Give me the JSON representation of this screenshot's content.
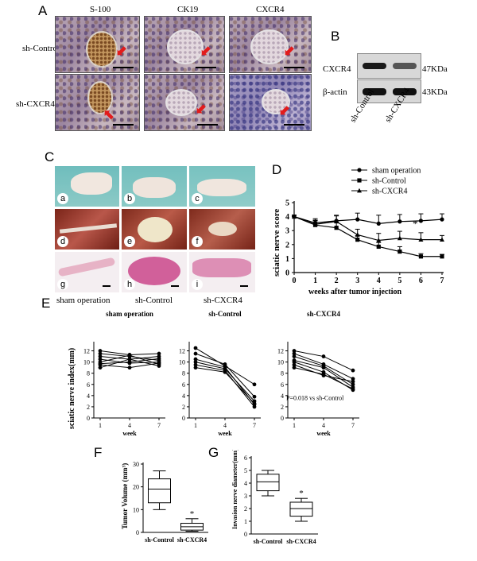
{
  "panel_labels": {
    "A": "A",
    "B": "B",
    "C": "C",
    "D": "D",
    "E": "E",
    "F": "F",
    "G": "G"
  },
  "panel_a": {
    "columns": [
      "S-100",
      "CK19",
      "CXCR4"
    ],
    "rows": [
      "sh-Control",
      "sh-CXCR4"
    ]
  },
  "panel_b": {
    "bands": [
      {
        "label": "CXCR4",
        "size": "47KDa"
      },
      {
        "label": "β-actin",
        "size": "43KDa"
      }
    ],
    "lanes": [
      "sh-Control",
      "sh-CXCR4"
    ]
  },
  "panel_c": {
    "sublabels": [
      "a",
      "b",
      "c",
      "d",
      "e",
      "f",
      "g",
      "h",
      "i"
    ],
    "captions": [
      "sham operation",
      "sh-Control",
      "sh-CXCR4"
    ]
  },
  "chart_data": [
    {
      "id": "D",
      "type": "line",
      "xlabel": "weeks after tumor injection",
      "ylabel": "sciatic nerve score",
      "x": [
        0,
        1,
        2,
        3,
        4,
        5,
        6,
        7
      ],
      "xlim": [
        0,
        7
      ],
      "ylim": [
        0,
        5
      ],
      "yticks": [
        0,
        1,
        2,
        3,
        4,
        5
      ],
      "series": [
        {
          "name": "sham operation",
          "marker": "circle",
          "values": [
            4,
            3.55,
            3.7,
            3.8,
            3.5,
            3.65,
            3.7,
            3.8
          ],
          "err": [
            0.1,
            0.3,
            0.4,
            0.45,
            0.6,
            0.5,
            0.5,
            0.4
          ]
        },
        {
          "name": "sh-Control",
          "marker": "square",
          "values": [
            4,
            3.4,
            3.2,
            2.35,
            1.85,
            1.5,
            1.15,
            1.15
          ],
          "err": [
            0.1,
            0.3,
            0.4,
            0.3,
            0.3,
            0.35,
            0.2,
            0.15
          ]
        },
        {
          "name": "sh-CXCR4",
          "marker": "triangle",
          "values": [
            4,
            3.45,
            3.65,
            2.7,
            2.3,
            2.45,
            2.35,
            2.35
          ],
          "err": [
            0.1,
            0.3,
            0.4,
            0.4,
            0.5,
            0.5,
            0.5,
            0.3
          ]
        }
      ],
      "annotation": "*"
    },
    {
      "id": "E",
      "type": "line",
      "ylabel": "sciatic nerve index(mm)",
      "yticks": [
        0,
        2,
        4,
        6,
        8,
        10,
        12
      ],
      "ylim": [
        0,
        12.5
      ],
      "subplots": [
        {
          "title": "sham operation",
          "xlabel": "week",
          "x": [
            1,
            4,
            7
          ],
          "lines": [
            [
              12,
              11.3,
              11.5
            ],
            [
              11.5,
              11,
              10.3
            ],
            [
              11,
              10.5,
              11
            ],
            [
              10.5,
              9.8,
              10
            ],
            [
              10,
              11.2,
              9.6
            ],
            [
              9.5,
              9,
              9.8
            ],
            [
              9,
              10.5,
              9.3
            ],
            [
              9.7,
              10,
              10.6
            ]
          ]
        },
        {
          "title": "sh-Control",
          "xlabel": "week",
          "x": [
            1,
            4,
            7
          ],
          "lines": [
            [
              12.5,
              9.3,
              6
            ],
            [
              11.5,
              9.6,
              3.8
            ],
            [
              10.5,
              9.1,
              2.4
            ],
            [
              10,
              8.8,
              3
            ],
            [
              9.5,
              8.5,
              2
            ],
            [
              9,
              8.2,
              2.6
            ]
          ]
        },
        {
          "title": "sh-CXCR4",
          "xlabel": "week",
          "x": [
            1,
            4,
            7
          ],
          "lines": [
            [
              12,
              11,
              8.5
            ],
            [
              11.5,
              9.6,
              7
            ],
            [
              11,
              9.3,
              6
            ],
            [
              10.3,
              9,
              5.5
            ],
            [
              10,
              8.2,
              5
            ],
            [
              9.5,
              7.6,
              6.5
            ],
            [
              9,
              7.8,
              5.2
            ]
          ],
          "annotation": "P=0.018 vs sh-Control"
        }
      ]
    },
    {
      "id": "F",
      "type": "box",
      "ylabel": "Tumor Volume (mm³)",
      "ylim": [
        0,
        30
      ],
      "yticks": [
        0,
        10,
        20,
        30
      ],
      "categories": [
        "sh-Control",
        "sh-CXCR4"
      ],
      "boxes": [
        {
          "min": 10,
          "q1": 13,
          "median": 19,
          "q3": 23.5,
          "max": 27
        },
        {
          "min": 0.5,
          "q1": 1,
          "median": 2.5,
          "q3": 4,
          "max": 6
        }
      ],
      "annotation": "*"
    },
    {
      "id": "G",
      "type": "box",
      "ylabel": "Invasion nerve diameter(mm)",
      "ylim": [
        0,
        6
      ],
      "yticks": [
        0,
        1,
        2,
        3,
        4,
        5,
        6
      ],
      "categories": [
        "sh-Control",
        "sh-CXCR4"
      ],
      "boxes": [
        {
          "min": 3,
          "q1": 3.4,
          "median": 4.1,
          "q3": 4.7,
          "max": 5
        },
        {
          "min": 1,
          "q1": 1.4,
          "median": 2,
          "q3": 2.5,
          "max": 2.8
        }
      ],
      "annotation": "*"
    }
  ]
}
